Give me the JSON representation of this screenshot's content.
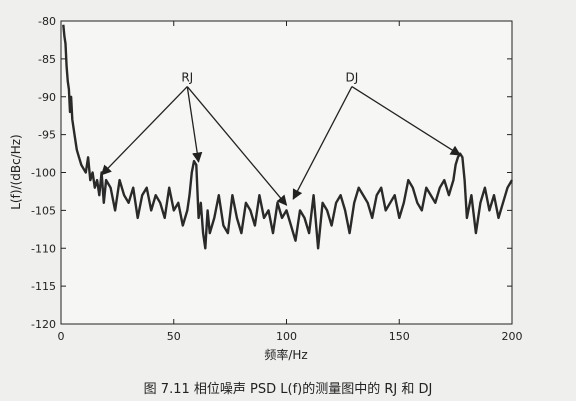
{
  "chart_data": {
    "type": "line",
    "title": "",
    "xlabel": "频率/Hz",
    "ylabel": "L(f)/(dBc/Hz)",
    "xlim": [
      0,
      200
    ],
    "ylim": [
      -120,
      -80
    ],
    "x_ticks": [
      0,
      50,
      100,
      150,
      200
    ],
    "y_ticks": [
      -80,
      -85,
      -90,
      -95,
      -100,
      -105,
      -110,
      -115,
      -120
    ],
    "grid": false,
    "series": [
      {
        "name": "",
        "color": "#2a2a2a",
        "x": [
          1,
          1.5,
          2,
          2.5,
          3,
          3.5,
          4,
          4.5,
          5,
          6,
          7,
          8,
          9,
          10,
          11,
          12,
          13,
          14,
          15,
          16,
          17,
          18,
          19,
          20,
          22,
          24,
          26,
          28,
          30,
          32,
          34,
          36,
          38,
          40,
          42,
          44,
          46,
          48,
          50,
          52,
          54,
          56,
          57,
          58,
          59,
          60,
          61,
          62,
          63,
          64,
          65,
          66,
          68,
          70,
          72,
          74,
          76,
          78,
          80,
          82,
          84,
          86,
          88,
          90,
          92,
          94,
          96,
          98,
          100,
          102,
          104,
          106,
          108,
          110,
          112,
          114,
          116,
          118,
          120,
          122,
          124,
          126,
          128,
          130,
          132,
          134,
          136,
          138,
          140,
          142,
          144,
          146,
          148,
          150,
          152,
          154,
          156,
          158,
          160,
          162,
          164,
          166,
          168,
          170,
          172,
          173,
          174,
          175,
          176,
          177,
          178,
          179,
          180,
          182,
          184,
          186,
          188,
          190,
          192,
          194,
          196,
          198,
          200
        ],
        "y": [
          -80.5,
          -82,
          -83,
          -86,
          -88,
          -89,
          -92,
          -90,
          -93,
          -95,
          -97,
          -98,
          -99,
          -99.5,
          -100,
          -98,
          -101,
          -100,
          -102,
          -101,
          -103,
          -100,
          -104,
          -101,
          -102,
          -105,
          -101,
          -103,
          -104,
          -102,
          -106,
          -103,
          -102,
          -105,
          -103,
          -104,
          -106,
          -102,
          -105,
          -104,
          -107,
          -105,
          -103,
          -100,
          -98.5,
          -99,
          -106,
          -104,
          -108,
          -110,
          -105,
          -108,
          -106,
          -103,
          -107,
          -108,
          -103,
          -106,
          -108,
          -104,
          -105,
          -107,
          -103,
          -106,
          -105,
          -108,
          -104,
          -106,
          -105,
          -107,
          -109,
          -105,
          -106,
          -108,
          -103,
          -110,
          -104,
          -105,
          -107,
          -104,
          -103,
          -105,
          -108,
          -104,
          -102,
          -103,
          -104,
          -106,
          -103,
          -102,
          -105,
          -104,
          -103,
          -106,
          -104,
          -101,
          -102,
          -104,
          -105,
          -102,
          -103,
          -104,
          -102,
          -101,
          -103,
          -102,
          -101,
          -99,
          -98,
          -97.5,
          -98,
          -101,
          -106,
          -103,
          -108,
          -104,
          -102,
          -105,
          -103,
          -106,
          -104,
          -102,
          -101
        ]
      }
    ],
    "annotations": [
      {
        "text": "RJ",
        "label_at": [
          56,
          -88
        ],
        "targets": [
          [
            18,
            -100.3
          ],
          [
            61,
            -98.6
          ],
          [
            100,
            -104.3
          ]
        ]
      },
      {
        "text": "DJ",
        "label_at": [
          129,
          -88
        ],
        "targets": [
          [
            103,
            -103.5
          ],
          [
            177,
            -97.7
          ]
        ]
      }
    ]
  },
  "caption": {
    "text": "图 7.11   相位噪声 PSD L(f)的测量图中的 RJ 和 DJ"
  }
}
